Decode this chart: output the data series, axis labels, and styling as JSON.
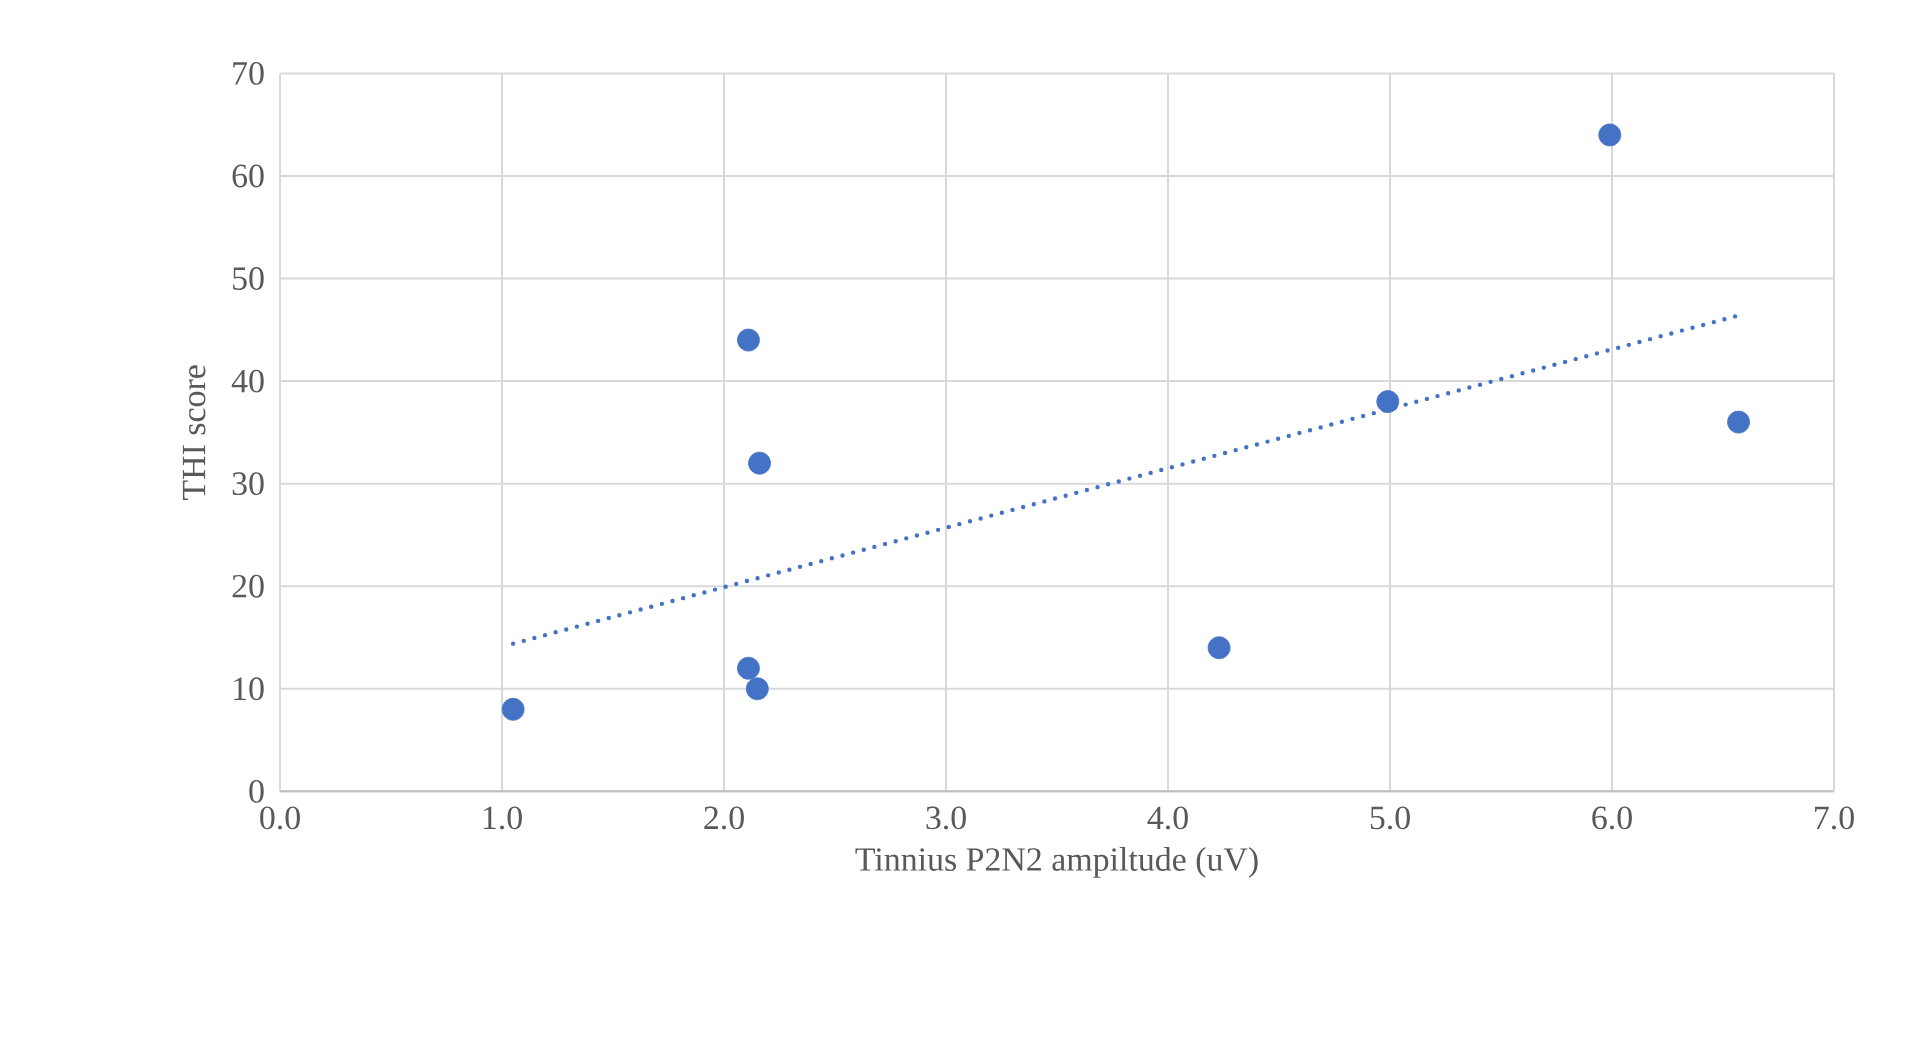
{
  "chart_data": {
    "type": "scatter",
    "xlabel": "Tinnius P2N2 ampiltude (uV)",
    "ylabel": "THI score",
    "xlim": [
      0,
      7
    ],
    "ylim": [
      0,
      70
    ],
    "xticks": [
      {
        "value": 0,
        "label": "0.0"
      },
      {
        "value": 1,
        "label": "1.0"
      },
      {
        "value": 2,
        "label": "2.0"
      },
      {
        "value": 3,
        "label": "3.0"
      },
      {
        "value": 4,
        "label": "4.0"
      },
      {
        "value": 5,
        "label": "5.0"
      },
      {
        "value": 6,
        "label": "6.0"
      },
      {
        "value": 7,
        "label": "7.0"
      }
    ],
    "yticks": [
      0,
      10,
      20,
      30,
      40,
      50,
      60,
      70
    ],
    "grid": true,
    "series": [
      {
        "marker": "circle",
        "color": "#4472c4",
        "x": [
          1.05,
          2.11,
          2.16,
          2.11,
          2.15,
          4.23,
          4.99,
          5.99,
          6.57
        ],
        "values": [
          8,
          44,
          32,
          12,
          10,
          14,
          38,
          64,
          36
        ]
      },
      {
        "type": "line",
        "line_style": "dotted",
        "color": "#4472c4",
        "x": [
          1.05,
          6.57
        ],
        "values": [
          14.4,
          46.4
        ]
      }
    ]
  }
}
